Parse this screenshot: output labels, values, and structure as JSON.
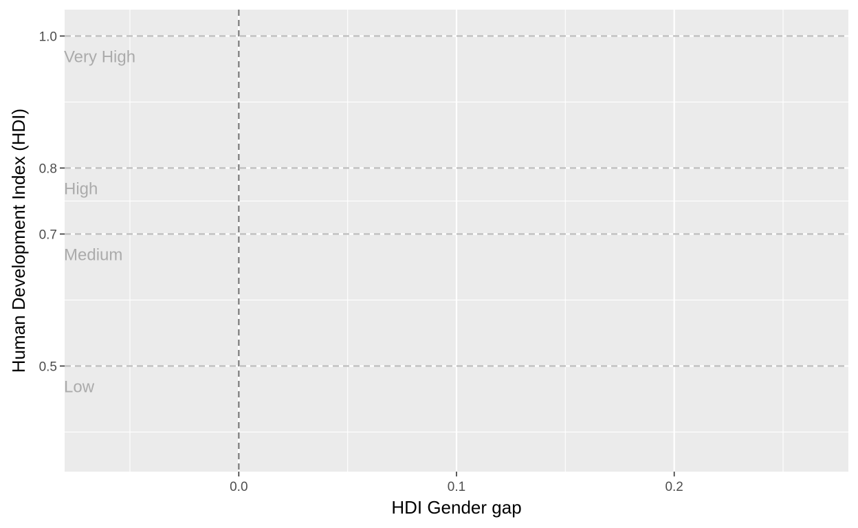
{
  "chart_data": {
    "type": "scatter",
    "xlabel": "HDI Gender gap",
    "ylabel": "Human Development Index (HDI)",
    "xlim": [
      -0.08,
      0.28
    ],
    "ylim": [
      0.34,
      1.04
    ],
    "x_ticks": [
      {
        "value": 0.0,
        "label": "0.0"
      },
      {
        "value": 0.1,
        "label": "0.1"
      },
      {
        "value": 0.2,
        "label": "0.2"
      }
    ],
    "x_minor_grid": [
      -0.05,
      0.05,
      0.15,
      0.25
    ],
    "y_ticks": [
      {
        "value": 0.5,
        "label": "0.5"
      },
      {
        "value": 0.7,
        "label": "0.7"
      },
      {
        "value": 0.8,
        "label": "0.8"
      },
      {
        "value": 1.0,
        "label": "1.0"
      }
    ],
    "y_minor_grid": [
      0.4,
      0.6,
      0.75,
      0.9
    ],
    "grid": true,
    "vertical_reference_line": {
      "x": 0.0,
      "style": "dashed"
    },
    "hdi_bands": [
      {
        "label": "Very High",
        "y": 1.0
      },
      {
        "label": "High",
        "y": 0.8
      },
      {
        "label": "Medium",
        "y": 0.7
      },
      {
        "label": "Low",
        "y": 0.5
      }
    ],
    "series": [],
    "colors": {
      "panel_background": "#ebebeb",
      "grid": "#ffffff",
      "threshold_line": "#bdbdbd",
      "reference_line": "#7a7a7a",
      "band_label": "#ababab",
      "tick_label": "#4d4d4d",
      "axis_title": "#000000"
    }
  }
}
